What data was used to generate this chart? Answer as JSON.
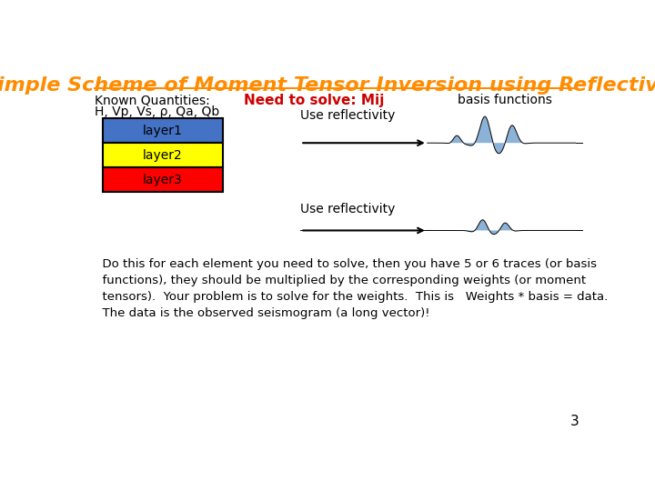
{
  "title": "Simple Scheme of Moment Tensor Inversion using Reflectivity",
  "title_color": "#FF8C00",
  "title_fontsize": 16,
  "known_quantities_line1": "Known Quantities:",
  "known_quantities_line2": "H, Vp, Vs, ρ, Qa, Qb",
  "need_to_solve": "Need to solve: Mij",
  "basis_functions": "basis functions",
  "use_reflectivity": "Use reflectivity",
  "layers": [
    "layer1",
    "layer2",
    "layer3"
  ],
  "layer_colors": [
    "#4472C4",
    "#FFFF00",
    "#FF0000"
  ],
  "body_text": "  Do this for each element you need to solve, then you have 5 or 6 traces (or basis\n  functions), they should be multiplied by the corresponding weights (or moment\n  tensors).  Your problem is to solve for the weights.  This is   Weights * basis = data.\n  The data is the observed seismogram (a long vector)!",
  "page_number": "3",
  "bg_color": "#FFFFFF",
  "waveform_color": "#6699CC"
}
